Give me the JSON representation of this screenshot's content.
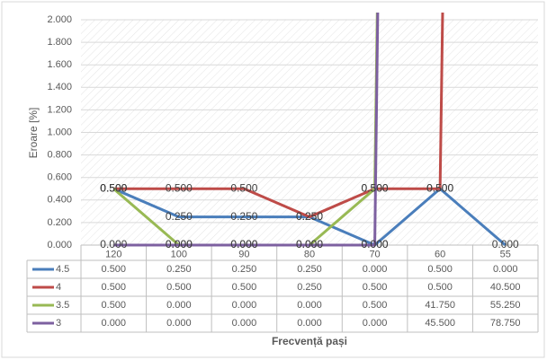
{
  "chart_data": {
    "type": "line",
    "y_label": "Eroare [%]",
    "x_label": "Frecvență pași",
    "categories": [
      "120",
      "100",
      "90",
      "80",
      "70",
      "60",
      "55"
    ],
    "ylim": [
      0,
      2
    ],
    "yticks": [
      {
        "value": 0,
        "label": "0.000"
      },
      {
        "value": 0.2,
        "label": "0.200"
      },
      {
        "value": 0.4,
        "label": "0.400"
      },
      {
        "value": 0.6,
        "label": "0.600"
      },
      {
        "value": 0.8,
        "label": "0.800"
      },
      {
        "value": 1,
        "label": "1.000"
      },
      {
        "value": 1.2,
        "label": "1.200"
      },
      {
        "value": 1.4,
        "label": "1.400"
      },
      {
        "value": 1.6,
        "label": "1.600"
      },
      {
        "value": 1.8,
        "label": "1.800"
      },
      {
        "value": 2,
        "label": "2.000"
      }
    ],
    "grid": true,
    "series": [
      {
        "name": "4.5",
        "color": "#4a7ebb",
        "values": [
          0.5,
          0.25,
          0.25,
          0.25,
          0,
          0.5,
          0
        ],
        "value_labels": [
          "0.500",
          "0.250",
          "0.250",
          "0.250",
          "0.000",
          "0.500",
          "0.000"
        ]
      },
      {
        "name": "4",
        "color": "#be4b48",
        "values": [
          0.5,
          0.5,
          0.5,
          0.25,
          0.5,
          0.5,
          40.5
        ],
        "value_labels": [
          "0.500",
          "0.500",
          "0.500",
          "0.250",
          "0.500",
          "0.500",
          "40.500"
        ]
      },
      {
        "name": "3.5",
        "color": "#98b954",
        "values": [
          0.5,
          0,
          0,
          0,
          0.5,
          41.75,
          55.25
        ],
        "value_labels": [
          "0.500",
          "0.000",
          "0.000",
          "0.000",
          "0.500",
          "41.750",
          "55.250"
        ]
      },
      {
        "name": "3",
        "color": "#7d60a0",
        "values": [
          0,
          0,
          0,
          0,
          0,
          45.5,
          78.75
        ],
        "value_labels": [
          "0.000",
          "0.000",
          "0.000",
          "0.000",
          "0.000",
          "45.500",
          "78.750"
        ]
      }
    ]
  }
}
